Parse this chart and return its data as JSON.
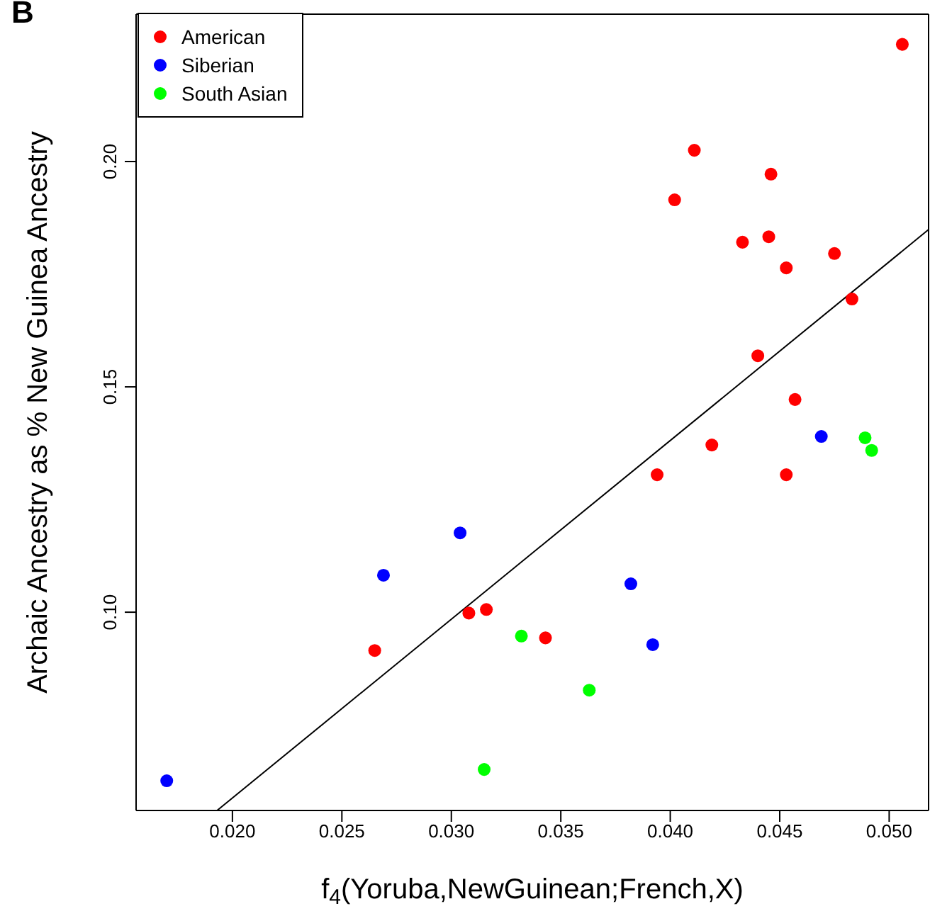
{
  "chart_data": {
    "type": "scatter",
    "xlabel": "f$_{4}$(Yoruba,NewGuinean;French,X)",
    "ylabel": "Archaic Ancestry as % New Guinea Ancestry",
    "annotations": [
      "B"
    ],
    "xlim": [
      0.0156,
      0.0518
    ],
    "ylim": [
      0.056,
      0.2327
    ],
    "xticks": [
      {
        "value": 0.02,
        "label": "0.020"
      },
      {
        "value": 0.025,
        "label": "0.025"
      },
      {
        "value": 0.03,
        "label": "0.030"
      },
      {
        "value": 0.035,
        "label": "0.035"
      },
      {
        "value": 0.04,
        "label": "0.040"
      },
      {
        "value": 0.045,
        "label": "0.045"
      },
      {
        "value": 0.05,
        "label": "0.050"
      }
    ],
    "yticks": [
      {
        "value": 0.1,
        "label": "0.10"
      },
      {
        "value": 0.15,
        "label": "0.15"
      },
      {
        "value": 0.2,
        "label": "0.20"
      }
    ],
    "legend": "top left",
    "marker": "circle",
    "series": [
      {
        "name": "American",
        "color": "#ff0000",
        "x": [
          0.0506,
          0.0411,
          0.0402,
          0.0446,
          0.0433,
          0.0445,
          0.0475,
          0.0453,
          0.0483,
          0.044,
          0.0457,
          0.0419,
          0.0394,
          0.0453,
          0.0308,
          0.0316,
          0.0265,
          0.0343
        ],
        "values": [
          0.226,
          0.2025,
          0.1915,
          0.1972,
          0.1821,
          0.1833,
          0.1796,
          0.1764,
          0.1695,
          0.1569,
          0.1472,
          0.1371,
          0.1305,
          0.1305,
          0.0998,
          0.1006,
          0.0915,
          0.0943
        ]
      },
      {
        "name": "Siberian",
        "color": "#0000ff",
        "x": [
          0.0469,
          0.0304,
          0.0269,
          0.0382,
          0.0392,
          0.017
        ],
        "values": [
          0.139,
          0.1176,
          0.1082,
          0.1063,
          0.0928,
          0.0626
        ]
      },
      {
        "name": "South Asian",
        "color": "#00ff00",
        "x": [
          0.0489,
          0.0492,
          0.0332,
          0.0363,
          0.0315
        ],
        "values": [
          0.1387,
          0.1359,
          0.0947,
          0.0827,
          0.0651
        ]
      },
      {
        "type": "line",
        "color": "#000000",
        "marker": "none",
        "x": [
          0.0193,
          0.0518
        ],
        "values": [
          0.056,
          0.1849
        ]
      }
    ]
  }
}
